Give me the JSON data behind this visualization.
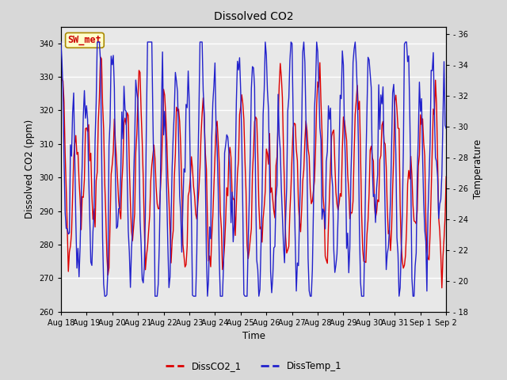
{
  "title": "Dissolved CO2",
  "xlabel": "Time",
  "ylabel_left": "Dissolved CO2 (ppm)",
  "ylabel_right": "Temperature",
  "annotation_text": "SW_met",
  "annotation_color": "#cc0000",
  "annotation_bg": "#ffffcc",
  "annotation_border": "#aa8800",
  "left_ylim": [
    260,
    345
  ],
  "right_ylim": [
    18,
    36.5
  ],
  "left_yticks": [
    260,
    270,
    280,
    290,
    300,
    310,
    320,
    330,
    340
  ],
  "right_yticks": [
    18,
    20,
    22,
    24,
    26,
    28,
    30,
    32,
    34,
    36
  ],
  "xtick_labels": [
    "Aug 18",
    "Aug 19",
    "Aug 20",
    "Aug 21",
    "Aug 22",
    "Aug 23",
    "Aug 24",
    "Aug 25",
    "Aug 26",
    "Aug 27",
    "Aug 28",
    "Aug 29",
    "Aug 30",
    "Aug 31",
    "Sep 1",
    "Sep 2"
  ],
  "co2_color": "#dd0000",
  "temp_color": "#2222cc",
  "legend_co2": "DissCO2_1",
  "legend_temp": "DissTemp_1",
  "bg_color": "#d8d8d8",
  "plot_bg": "#e8e8e8",
  "grid_color": "white",
  "linewidth": 1.0,
  "figsize": [
    6.4,
    4.8
  ],
  "dpi": 100
}
